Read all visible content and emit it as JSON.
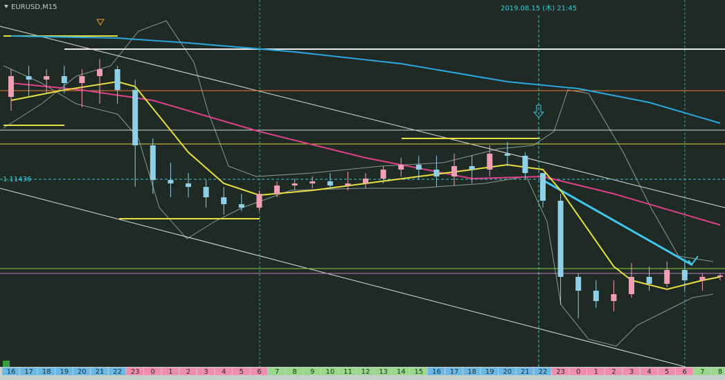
{
  "chart_data": {
    "type": "candlestick",
    "title": "EURUSD,M15",
    "crosshair": {
      "price": 1.11436,
      "time": "2019.08.15 (木) 21:45"
    },
    "categories": [
      "16",
      "17",
      "18",
      "19",
      "20",
      "21",
      "22",
      "23",
      "0",
      "1",
      "2",
      "3",
      "4",
      "5",
      "6",
      "7",
      "8",
      "9",
      "10",
      "11",
      "12",
      "13",
      "14",
      "15",
      "16",
      "17",
      "18",
      "19",
      "20",
      "21",
      "22",
      "23",
      "0",
      "1",
      "2",
      "3",
      "4",
      "5",
      "6",
      "7",
      "8"
    ],
    "category_colors": [
      "#6ab8e8",
      "#6ab8e8",
      "#6ab8e8",
      "#6ab8e8",
      "#6ab8e8",
      "#6ab8e8",
      "#6ab8e8",
      "#f08cb0",
      "#f08cb0",
      "#f08cb0",
      "#f08cb0",
      "#f08cb0",
      "#f08cb0",
      "#f08cb0",
      "#f08cb0",
      "#9ad88c",
      "#9ad88c",
      "#9ad88c",
      "#9ad88c",
      "#9ad88c",
      "#9ad88c",
      "#9ad88c",
      "#9ad88c",
      "#9ad88c",
      "#6ab8e8",
      "#6ab8e8",
      "#6ab8e8",
      "#6ab8e8",
      "#6ab8e8",
      "#6ab8e8",
      "#6ab8e8",
      "#f08cb0",
      "#f08cb0",
      "#f08cb0",
      "#f08cb0",
      "#f08cb0",
      "#f08cb0",
      "#f08cb0",
      "#f08cb0",
      "#9ad88c",
      "#9ad88c"
    ],
    "open": [
      1.11555,
      1.11585,
      1.1158,
      1.11585,
      1.11575,
      1.11585,
      1.11595,
      1.11565,
      1.11485,
      1.11435,
      1.1143,
      1.11425,
      1.1141,
      1.114,
      1.11395,
      1.11415,
      1.11427,
      1.1143,
      1.11433,
      1.11427,
      1.1143,
      1.11437,
      1.1145,
      1.11457,
      1.1145,
      1.1144,
      1.11455,
      1.1145,
      1.11473,
      1.1147,
      1.11445,
      1.11405,
      1.11295,
      1.11275,
      1.1126,
      1.1127,
      1.11295,
      1.11285,
      1.11305,
      1.1129,
      1.11295
    ],
    "high": [
      1.11595,
      1.116,
      1.11595,
      1.116,
      1.11595,
      1.1161,
      1.116,
      1.1158,
      1.11495,
      1.1146,
      1.11445,
      1.11435,
      1.11425,
      1.11415,
      1.1142,
      1.11433,
      1.11437,
      1.1144,
      1.11445,
      1.11447,
      1.11445,
      1.11455,
      1.11467,
      1.1147,
      1.1147,
      1.11473,
      1.1147,
      1.11485,
      1.1149,
      1.11475,
      1.11445,
      1.11415,
      1.113,
      1.1129,
      1.1129,
      1.11315,
      1.1131,
      1.11317,
      1.11317,
      1.113,
      1.113
    ],
    "low": [
      1.11535,
      1.11555,
      1.1156,
      1.1156,
      1.1154,
      1.11545,
      1.11545,
      1.11425,
      1.11415,
      1.1141,
      1.1141,
      1.11395,
      1.11385,
      1.1139,
      1.1139,
      1.1141,
      1.1142,
      1.11423,
      1.11423,
      1.1142,
      1.11423,
      1.1143,
      1.1144,
      1.11435,
      1.11425,
      1.11427,
      1.1143,
      1.1144,
      1.11455,
      1.11435,
      1.11395,
      1.11255,
      1.11235,
      1.1125,
      1.11245,
      1.11265,
      1.11275,
      1.1128,
      1.11275,
      1.11275,
      1.1129
    ],
    "close": [
      1.11585,
      1.1158,
      1.11585,
      1.11575,
      1.11585,
      1.11595,
      1.11565,
      1.11485,
      1.11435,
      1.1143,
      1.11425,
      1.1141,
      1.114,
      1.11395,
      1.11415,
      1.11427,
      1.1143,
      1.11433,
      1.11427,
      1.1143,
      1.11437,
      1.1145,
      1.11457,
      1.1145,
      1.1144,
      1.11455,
      1.1145,
      1.11473,
      1.1147,
      1.11445,
      1.11405,
      1.11295,
      1.11275,
      1.1126,
      1.1127,
      1.11295,
      1.11285,
      1.11305,
      1.1129,
      1.11295,
      1.11297
    ],
    "up_color": "#f0a0b4",
    "down_color": "#8fd0e8",
    "ylim": [
      1.11165,
      1.11695
    ],
    "lines": [
      {
        "color": "#2aa8e0",
        "x": [
          0,
          6,
          10,
          16,
          22,
          28,
          32,
          36,
          40
        ],
        "values": [
          1.11643,
          1.1164,
          1.11633,
          1.1162,
          1.11603,
          1.11577,
          1.11567,
          1.11547,
          1.11517
        ]
      },
      {
        "color": "#e0408a",
        "x": [
          0,
          4,
          8,
          14,
          20,
          26,
          30,
          34,
          40
        ],
        "values": [
          1.11575,
          1.11565,
          1.1155,
          1.11505,
          1.11467,
          1.11437,
          1.1144,
          1.11415,
          1.1137
        ]
      },
      {
        "color": "#e8e040",
        "x": [
          0,
          3,
          6,
          7,
          10,
          12,
          14,
          17,
          20,
          23,
          26,
          28,
          30,
          31,
          34,
          35,
          37,
          39,
          40
        ],
        "values": [
          1.1155,
          1.11565,
          1.11577,
          1.1157,
          1.11475,
          1.1143,
          1.11413,
          1.1142,
          1.1143,
          1.1144,
          1.1145,
          1.11457,
          1.1145,
          1.1142,
          1.1131,
          1.1129,
          1.11277,
          1.1129,
          1.11295
        ]
      }
    ]
  }
}
